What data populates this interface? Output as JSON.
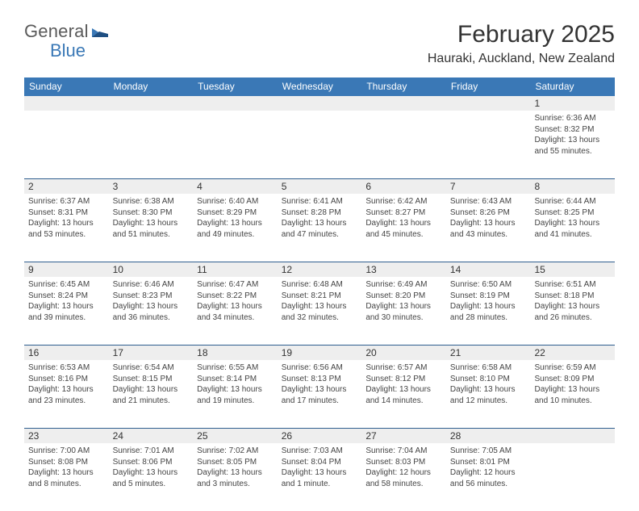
{
  "logo": {
    "general": "General",
    "blue": "Blue"
  },
  "title": "February 2025",
  "location": "Hauraki, Auckland, New Zealand",
  "colors": {
    "header_bg": "#3a78b6",
    "header_text": "#ffffff",
    "daynum_bg": "#eeeeee",
    "sep": "#2f5f8f",
    "body_text": "#444444",
    "page_bg": "#ffffff"
  },
  "fonts": {
    "title_size_pt": 22,
    "location_size_pt": 12,
    "dayhead_size_pt": 9,
    "daynum_size_pt": 9,
    "body_size_pt": 7.5
  },
  "dayNames": [
    "Sunday",
    "Monday",
    "Tuesday",
    "Wednesday",
    "Thursday",
    "Friday",
    "Saturday"
  ],
  "weeks": [
    [
      null,
      null,
      null,
      null,
      null,
      null,
      {
        "n": "1",
        "sr": "6:36 AM",
        "ss": "8:32 PM",
        "dl": "13 hours and 55 minutes."
      }
    ],
    [
      {
        "n": "2",
        "sr": "6:37 AM",
        "ss": "8:31 PM",
        "dl": "13 hours and 53 minutes."
      },
      {
        "n": "3",
        "sr": "6:38 AM",
        "ss": "8:30 PM",
        "dl": "13 hours and 51 minutes."
      },
      {
        "n": "4",
        "sr": "6:40 AM",
        "ss": "8:29 PM",
        "dl": "13 hours and 49 minutes."
      },
      {
        "n": "5",
        "sr": "6:41 AM",
        "ss": "8:28 PM",
        "dl": "13 hours and 47 minutes."
      },
      {
        "n": "6",
        "sr": "6:42 AM",
        "ss": "8:27 PM",
        "dl": "13 hours and 45 minutes."
      },
      {
        "n": "7",
        "sr": "6:43 AM",
        "ss": "8:26 PM",
        "dl": "13 hours and 43 minutes."
      },
      {
        "n": "8",
        "sr": "6:44 AM",
        "ss": "8:25 PM",
        "dl": "13 hours and 41 minutes."
      }
    ],
    [
      {
        "n": "9",
        "sr": "6:45 AM",
        "ss": "8:24 PM",
        "dl": "13 hours and 39 minutes."
      },
      {
        "n": "10",
        "sr": "6:46 AM",
        "ss": "8:23 PM",
        "dl": "13 hours and 36 minutes."
      },
      {
        "n": "11",
        "sr": "6:47 AM",
        "ss": "8:22 PM",
        "dl": "13 hours and 34 minutes."
      },
      {
        "n": "12",
        "sr": "6:48 AM",
        "ss": "8:21 PM",
        "dl": "13 hours and 32 minutes."
      },
      {
        "n": "13",
        "sr": "6:49 AM",
        "ss": "8:20 PM",
        "dl": "13 hours and 30 minutes."
      },
      {
        "n": "14",
        "sr": "6:50 AM",
        "ss": "8:19 PM",
        "dl": "13 hours and 28 minutes."
      },
      {
        "n": "15",
        "sr": "6:51 AM",
        "ss": "8:18 PM",
        "dl": "13 hours and 26 minutes."
      }
    ],
    [
      {
        "n": "16",
        "sr": "6:53 AM",
        "ss": "8:16 PM",
        "dl": "13 hours and 23 minutes."
      },
      {
        "n": "17",
        "sr": "6:54 AM",
        "ss": "8:15 PM",
        "dl": "13 hours and 21 minutes."
      },
      {
        "n": "18",
        "sr": "6:55 AM",
        "ss": "8:14 PM",
        "dl": "13 hours and 19 minutes."
      },
      {
        "n": "19",
        "sr": "6:56 AM",
        "ss": "8:13 PM",
        "dl": "13 hours and 17 minutes."
      },
      {
        "n": "20",
        "sr": "6:57 AM",
        "ss": "8:12 PM",
        "dl": "13 hours and 14 minutes."
      },
      {
        "n": "21",
        "sr": "6:58 AM",
        "ss": "8:10 PM",
        "dl": "13 hours and 12 minutes."
      },
      {
        "n": "22",
        "sr": "6:59 AM",
        "ss": "8:09 PM",
        "dl": "13 hours and 10 minutes."
      }
    ],
    [
      {
        "n": "23",
        "sr": "7:00 AM",
        "ss": "8:08 PM",
        "dl": "13 hours and 8 minutes."
      },
      {
        "n": "24",
        "sr": "7:01 AM",
        "ss": "8:06 PM",
        "dl": "13 hours and 5 minutes."
      },
      {
        "n": "25",
        "sr": "7:02 AM",
        "ss": "8:05 PM",
        "dl": "13 hours and 3 minutes."
      },
      {
        "n": "26",
        "sr": "7:03 AM",
        "ss": "8:04 PM",
        "dl": "13 hours and 1 minute."
      },
      {
        "n": "27",
        "sr": "7:04 AM",
        "ss": "8:03 PM",
        "dl": "12 hours and 58 minutes."
      },
      {
        "n": "28",
        "sr": "7:05 AM",
        "ss": "8:01 PM",
        "dl": "12 hours and 56 minutes."
      },
      null
    ]
  ],
  "labels": {
    "sunrise": "Sunrise:",
    "sunset": "Sunset:",
    "daylight": "Daylight:"
  }
}
